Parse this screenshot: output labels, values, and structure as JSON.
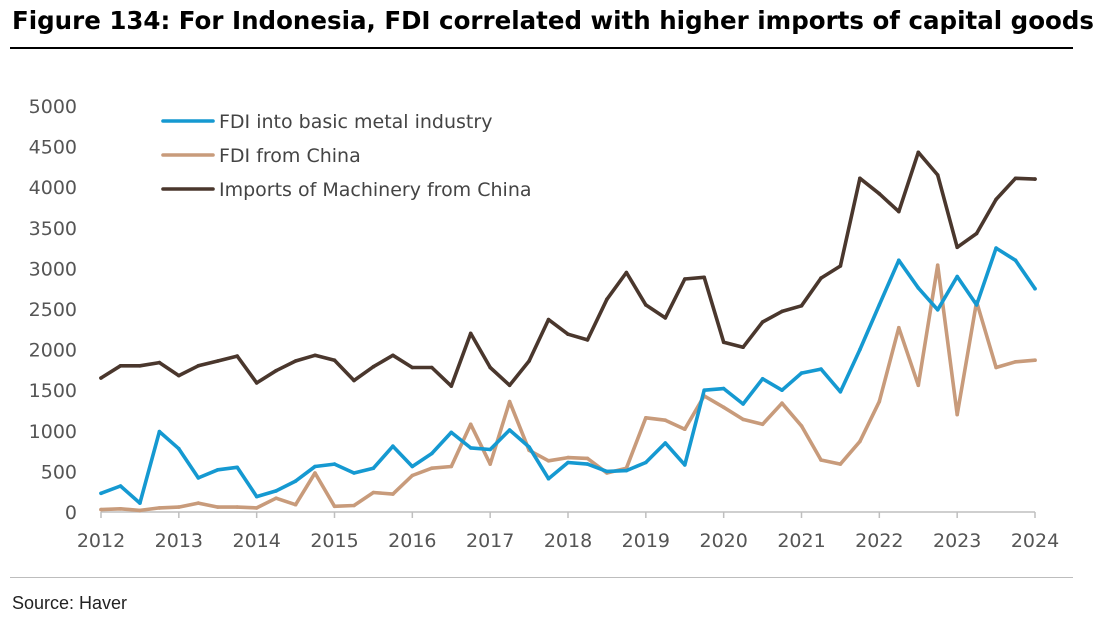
{
  "title": "Figure 134: For Indonesia, FDI correlated with higher imports of capital goods",
  "source": "Source: Haver",
  "chart_data": {
    "type": "line",
    "title": "Figure 134: For Indonesia, FDI correlated with higher imports of capital goods",
    "xlabel": "",
    "ylabel": "",
    "ylim": [
      0,
      5000
    ],
    "yticks": [
      0,
      500,
      1000,
      1500,
      2000,
      2500,
      3000,
      3500,
      4000,
      4500,
      5000
    ],
    "xlim": [
      2012,
      2024
    ],
    "xticks": [
      2012,
      2013,
      2014,
      2015,
      2016,
      2017,
      2018,
      2019,
      2020,
      2021,
      2022,
      2023,
      2024
    ],
    "grid": false,
    "legend_position": "top-left",
    "x": [
      2012.0,
      2012.25,
      2012.5,
      2012.75,
      2013.0,
      2013.25,
      2013.5,
      2013.75,
      2014.0,
      2014.25,
      2014.5,
      2014.75,
      2015.0,
      2015.25,
      2015.5,
      2015.75,
      2016.0,
      2016.25,
      2016.5,
      2016.75,
      2017.0,
      2017.25,
      2017.5,
      2017.75,
      2018.0,
      2018.25,
      2018.5,
      2018.75,
      2019.0,
      2019.25,
      2019.5,
      2019.75,
      2020.0,
      2020.25,
      2020.5,
      2020.75,
      2021.0,
      2021.25,
      2021.5,
      2021.75,
      2022.0,
      2022.25,
      2022.5,
      2022.75,
      2023.0,
      2023.25,
      2023.5,
      2023.75,
      2024.0
    ],
    "series": [
      {
        "name": "FDI into basic metal industry",
        "color": "#1599d1",
        "values": [
          230,
          320,
          110,
          990,
          780,
          420,
          520,
          550,
          190,
          260,
          380,
          560,
          590,
          480,
          540,
          810,
          560,
          720,
          980,
          790,
          770,
          1010,
          800,
          410,
          610,
          590,
          500,
          510,
          610,
          850,
          580,
          1500,
          1520,
          1330,
          1640,
          1500,
          1710,
          1760,
          1480,
          2000,
          2550,
          3100,
          2760,
          2490,
          2900,
          2550,
          3250,
          3100,
          2750
        ]
      },
      {
        "name": "FDI from China",
        "color": "#c89b7b",
        "values": [
          30,
          40,
          20,
          50,
          60,
          110,
          60,
          60,
          50,
          170,
          90,
          480,
          70,
          80,
          240,
          220,
          450,
          540,
          560,
          1080,
          590,
          1360,
          760,
          630,
          670,
          660,
          480,
          540,
          1160,
          1130,
          1020,
          1430,
          1290,
          1140,
          1080,
          1340,
          1060,
          640,
          590,
          870,
          1360,
          2270,
          1560,
          3040,
          1200,
          2590,
          1780,
          1850,
          1870
        ]
      },
      {
        "name": "Imports of Machinery from China",
        "color": "#4a372d",
        "values": [
          1650,
          1800,
          1800,
          1840,
          1680,
          1800,
          1860,
          1920,
          1590,
          1740,
          1860,
          1930,
          1870,
          1620,
          1790,
          1930,
          1780,
          1780,
          1550,
          2200,
          1780,
          1560,
          1860,
          2370,
          2190,
          2120,
          2620,
          2950,
          2550,
          2390,
          2870,
          2890,
          2090,
          2030,
          2340,
          2470,
          2540,
          2880,
          3030,
          4110,
          3920,
          3700,
          4430,
          4150,
          3260,
          3430,
          3850,
          4110,
          4100
        ]
      }
    ]
  }
}
